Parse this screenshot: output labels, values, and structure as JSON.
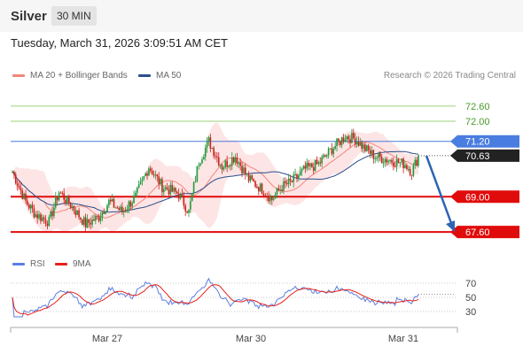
{
  "header": {
    "instrument": "Silver",
    "timeframe": "30 MIN"
  },
  "timestamp": "Tuesday, March 31, 2026 3:09:51 AM CET",
  "legend": {
    "ma20": {
      "label": "MA 20 + Bollinger Bands",
      "color": "#f4857c"
    },
    "ma50": {
      "label": "MA 50",
      "color": "#2b4f8c"
    }
  },
  "credit": "Research © 2026 Trading Central",
  "rsi_legend": {
    "rsi": {
      "label": "RSI",
      "color": "#5b7fe0"
    },
    "ma9": {
      "label": "9MA",
      "color": "#e8201a"
    }
  },
  "chart_data": {
    "type": "candlestick",
    "x_ticks": [
      "Mar 27",
      "Mar 30",
      "Mar 31"
    ],
    "y_range": [
      66.9,
      73.3
    ],
    "levels": [
      {
        "value": 72.6,
        "label": "72.60",
        "kind": "resistance"
      },
      {
        "value": 72.0,
        "label": "72.00",
        "kind": "resistance"
      },
      {
        "value": 71.2,
        "label": "71.20",
        "kind": "pivot"
      },
      {
        "value": 69.0,
        "label": "69.00",
        "kind": "support"
      },
      {
        "value": 67.6,
        "label": "67.60",
        "kind": "support"
      }
    ],
    "last_price": {
      "value": 70.63,
      "label": "70.63"
    },
    "forecast": {
      "from": 70.63,
      "to": 67.6
    },
    "rsi": {
      "ticks": [
        70,
        50,
        30
      ],
      "range": [
        15,
        80
      ]
    },
    "colors": {
      "up": "#1e9b3c",
      "down": "#c8221c",
      "band": "#fde0e0",
      "pivot": "#4a7de0",
      "support": "#e00c0c",
      "resistance": "#9bd27a",
      "forecast": "#2d64b4",
      "last": "#222222"
    }
  }
}
